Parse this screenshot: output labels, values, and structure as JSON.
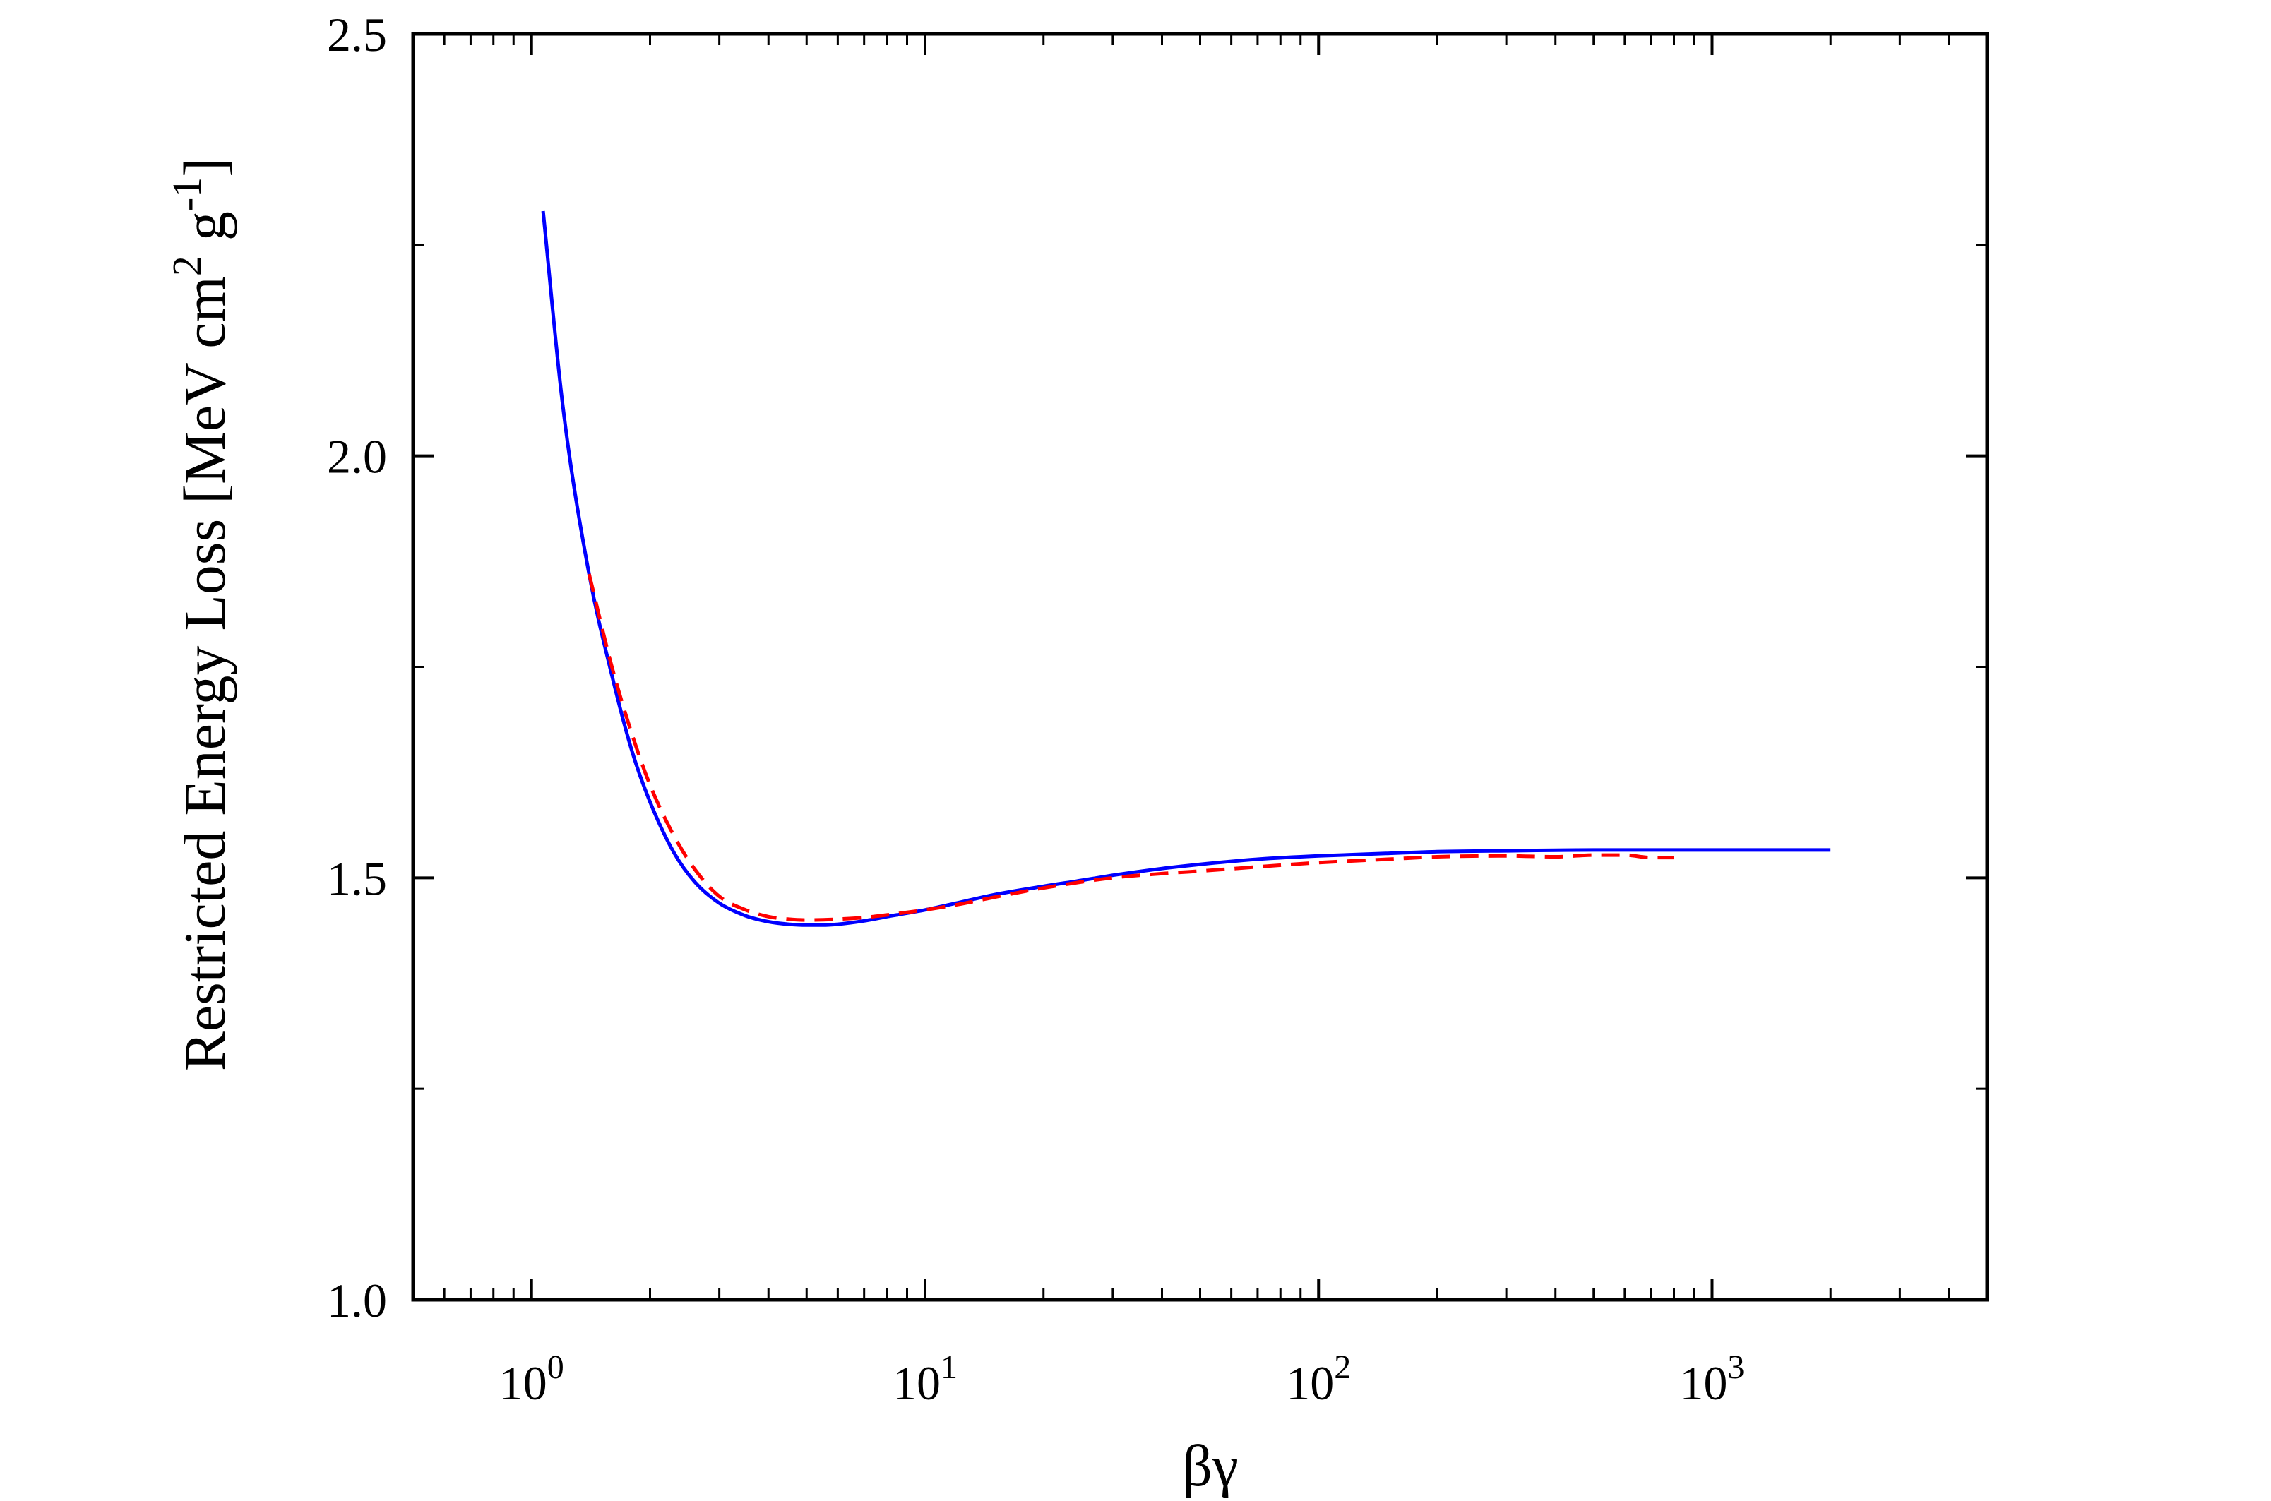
{
  "chart_data": {
    "type": "line",
    "xlabel": "βγ",
    "ylabel": "Restricted Energy Loss [MeV cm² g⁻¹]",
    "ylabel_parts": {
      "main": "Restricted Energy Loss [MeV cm",
      "sup1": "2",
      "mid": " g",
      "sup2": "-1",
      "end": "]"
    },
    "x_scale": "log",
    "xlim": [
      0.5,
      5000
    ],
    "ylim": [
      1.0,
      2.5
    ],
    "x_ticks": [
      {
        "value": 1,
        "base": "10",
        "exp": "0"
      },
      {
        "value": 10,
        "base": "10",
        "exp": "1"
      },
      {
        "value": 100,
        "base": "10",
        "exp": "2"
      },
      {
        "value": 1000,
        "base": "10",
        "exp": "3"
      }
    ],
    "y_ticks": [
      {
        "value": 1.0,
        "label": "1.0"
      },
      {
        "value": 1.5,
        "label": "1.5"
      },
      {
        "value": 2.0,
        "label": "2.0"
      },
      {
        "value": 2.5,
        "label": "2.5"
      }
    ],
    "y_minor_ticks": [
      1.25,
      1.75,
      2.25
    ],
    "grid": false,
    "series": [
      {
        "color": "#0000ff",
        "style": "solid",
        "x": [
          1.07,
          1.2,
          1.4,
          1.6,
          1.8,
          2.0,
          2.3,
          2.6,
          3.0,
          3.5,
          4.0,
          4.5,
          5.0,
          5.5,
          6.0,
          7.0,
          8.0,
          10,
          12,
          15,
          20,
          25,
          30,
          40,
          50,
          70,
          100,
          150,
          200,
          300,
          500,
          700,
          1000,
          1500,
          2000
        ],
        "y": [
          2.29,
          2.06,
          1.86,
          1.74,
          1.65,
          1.59,
          1.53,
          1.495,
          1.47,
          1.455,
          1.448,
          1.445,
          1.444,
          1.444,
          1.445,
          1.449,
          1.454,
          1.462,
          1.47,
          1.48,
          1.49,
          1.497,
          1.503,
          1.511,
          1.516,
          1.522,
          1.526,
          1.529,
          1.531,
          1.532,
          1.533,
          1.533,
          1.533,
          1.533,
          1.533
        ]
      },
      {
        "color": "#ff0000",
        "style": "dashed",
        "x": [
          1.4,
          1.6,
          1.8,
          2.0,
          2.3,
          2.6,
          3.0,
          3.5,
          4.0,
          4.5,
          5.0,
          6.0,
          7.0,
          8.0,
          10,
          12,
          15,
          20,
          30,
          40,
          50,
          70,
          100,
          150,
          200,
          300,
          400,
          500,
          600,
          700,
          800
        ],
        "y": [
          1.86,
          1.75,
          1.67,
          1.61,
          1.55,
          1.51,
          1.478,
          1.462,
          1.454,
          1.451,
          1.45,
          1.451,
          1.453,
          1.456,
          1.462,
          1.468,
          1.477,
          1.488,
          1.5,
          1.505,
          1.508,
          1.513,
          1.518,
          1.522,
          1.525,
          1.526,
          1.525,
          1.527,
          1.527,
          1.524,
          1.524
        ]
      }
    ],
    "colors": {
      "axis": "#000000",
      "blue": "#0000ff",
      "red": "#ff0000"
    }
  }
}
